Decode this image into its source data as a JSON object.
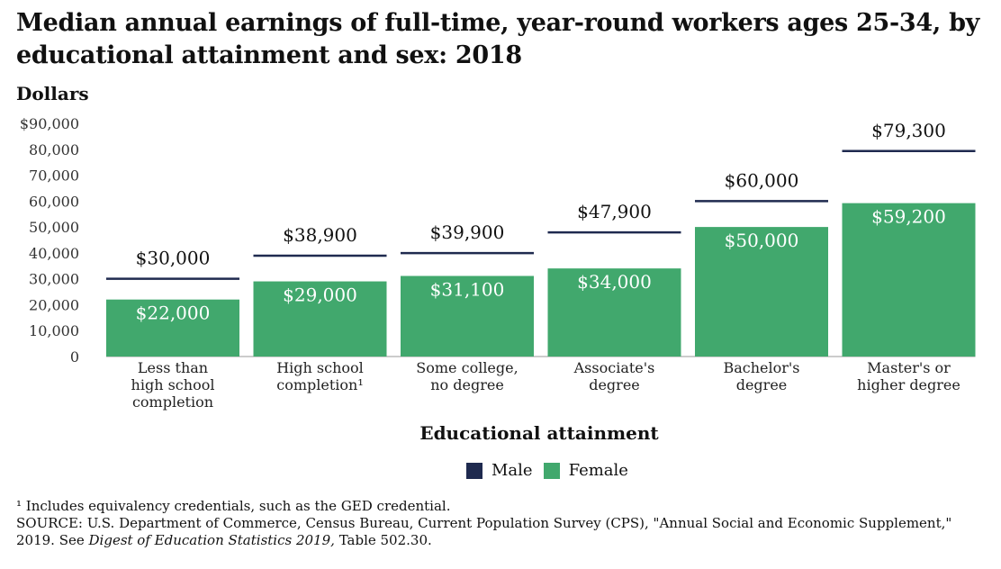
{
  "title": "Median annual earnings of full-time, year-round workers ages 25-34, by educational attainment and sex: 2018",
  "chart_data": {
    "type": "bar",
    "ylabel": "Dollars",
    "xlabel": "Educational attainment",
    "ylim": [
      0,
      90000
    ],
    "y_ticks": [
      "$90,000",
      "80,000",
      "70,000",
      "60,000",
      "50,000",
      "40,000",
      "30,000",
      "20,000",
      "10,000",
      "0"
    ],
    "y_tick_values": [
      90000,
      80000,
      70000,
      60000,
      50000,
      40000,
      30000,
      20000,
      10000,
      0
    ],
    "categories": [
      [
        "Less than",
        "high school",
        "completion"
      ],
      [
        "High school",
        "completion¹"
      ],
      [
        "Some college,",
        "no degree"
      ],
      [
        "Associate's",
        "degree"
      ],
      [
        "Bachelor's",
        "degree"
      ],
      [
        "Master's or",
        "higher degree"
      ]
    ],
    "series": [
      {
        "name": "Male",
        "values": [
          30000,
          38900,
          39900,
          47900,
          60000,
          79300
        ],
        "labels": [
          "$30,000",
          "$38,900",
          "$39,900",
          "$47,900",
          "$60,000",
          "$79,300"
        ],
        "color": "#1f2a4f"
      },
      {
        "name": "Female",
        "values": [
          22000,
          29000,
          31100,
          34000,
          50000,
          59200
        ],
        "labels": [
          "$22,000",
          "$29,000",
          "$31,100",
          "$34,000",
          "$50,000",
          "$59,200"
        ],
        "color": "#41a86d"
      }
    ],
    "legend_position": "bottom"
  },
  "footnotes": {
    "note1": "¹ Includes equivalency credentials, such as the GED credential.",
    "source_line1": "SOURCE: U.S. Department of Commerce, Census Bureau, Current Population Survey (CPS), \"Annual Social and Economic Supplement,\"",
    "source_line2_prefix": "2019. See ",
    "source_line2_italic": "Digest of Education Statistics 2019,",
    "source_line2_suffix": " Table 502.30."
  }
}
